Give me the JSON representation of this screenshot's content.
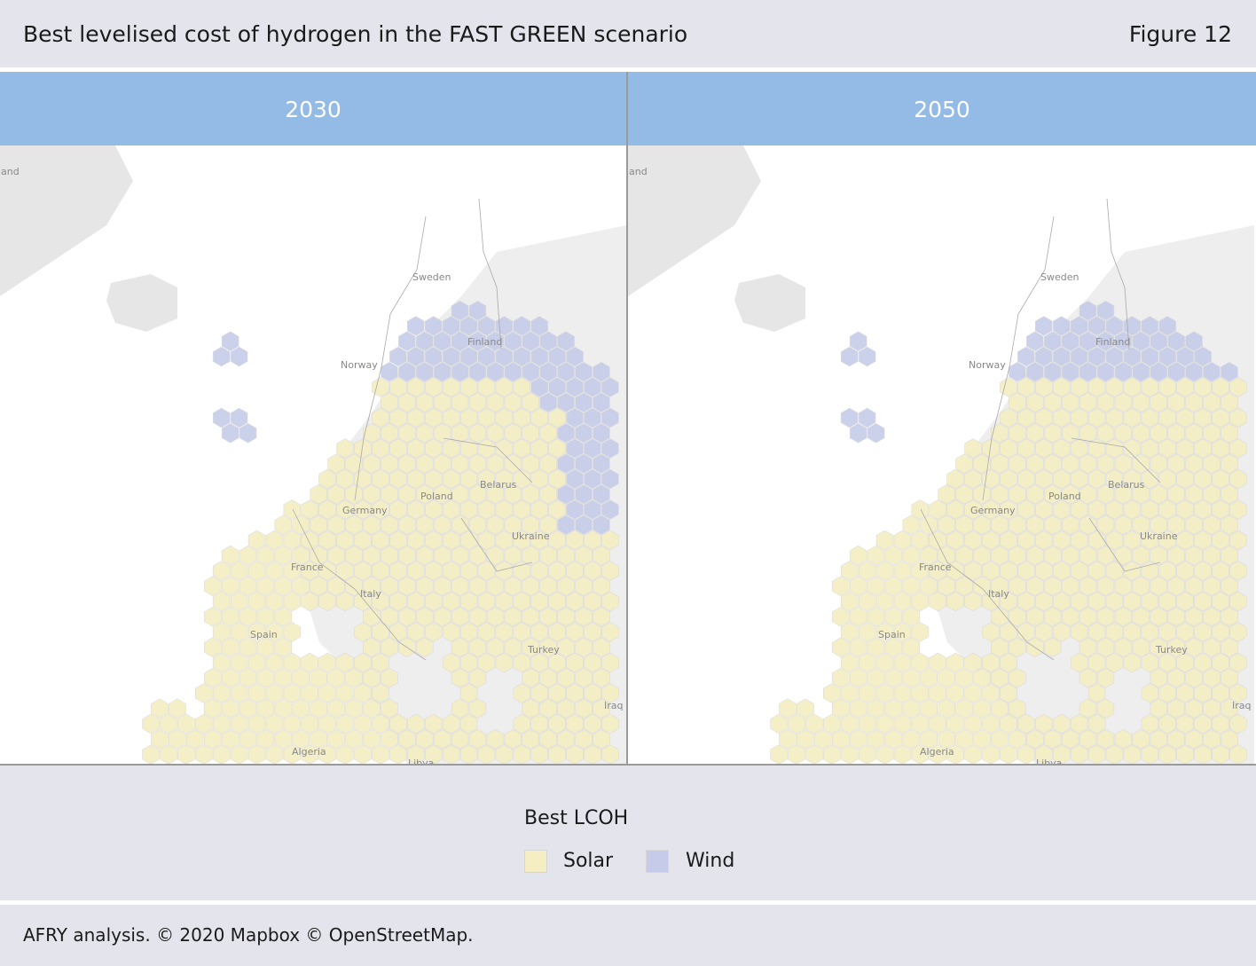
{
  "header": {
    "title": "Best levelised cost of hydrogen in the FAST GREEN scenario",
    "figure_label": "Figure 12"
  },
  "colors": {
    "solar": "#f5eec3",
    "wind": "#c6cbe9",
    "header_band": "#93bbe6",
    "land": "#e6e6e6",
    "background": "#e4e5ec"
  },
  "panels": [
    {
      "year": "2030",
      "scenario_year": 2030
    },
    {
      "year": "2050",
      "scenario_year": 2050
    }
  ],
  "map_labels": {
    "iceland_partial": "land",
    "sweden": "Sweden",
    "finland": "Finland",
    "norway": "Norway",
    "poland": "Poland",
    "belarus": "Belarus",
    "germany": "Germany",
    "ukraine": "Ukraine",
    "france": "France",
    "italy": "Italy",
    "spain": "Spain",
    "turkey": "Turkey",
    "iraq": "Iraq",
    "algeria": "Algeria",
    "libya": "Libya"
  },
  "legend": {
    "title": "Best LCOH",
    "items": [
      {
        "label": "Solar",
        "color_key": "solar"
      },
      {
        "label": "Wind",
        "color_key": "wind"
      }
    ]
  },
  "source": "AFRY analysis. © 2020 Mapbox © OpenStreetMap."
}
